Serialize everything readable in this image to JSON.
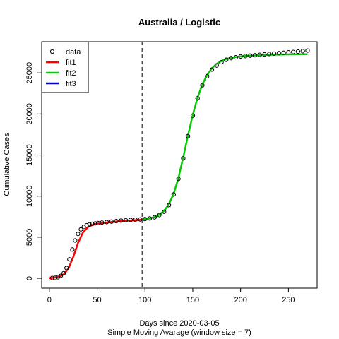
{
  "chart_data": {
    "type": "scatter",
    "title": "Australia / Logistic",
    "xlabel": "Days since 2020-03-05",
    "xlabel2": "Simple Moving Avarage (window size = 7)",
    "ylabel": "Cumulative Cases",
    "xlim": [
      -8,
      280
    ],
    "ylim": [
      -1200,
      28800
    ],
    "xticks": [
      0,
      50,
      100,
      150,
      200,
      250
    ],
    "yticks": [
      0,
      5000,
      10000,
      15000,
      20000,
      25000
    ],
    "vline": {
      "x": 97,
      "style": "dashed",
      "color": "#000000"
    },
    "legend": {
      "position": "top-left",
      "entries": [
        {
          "label": "data",
          "kind": "point",
          "color": "#000000"
        },
        {
          "label": "fit1",
          "kind": "line",
          "color": "#ff0000"
        },
        {
          "label": "fit2",
          "kind": "line",
          "color": "#00cc00"
        },
        {
          "label": "fit3",
          "kind": "line",
          "color": "#0000cc"
        }
      ]
    },
    "series": [
      {
        "name": "data",
        "kind": "points",
        "color": "#000000",
        "x": [
          3,
          6,
          9,
          12,
          15,
          18,
          21,
          24,
          27,
          30,
          33,
          36,
          39,
          42,
          45,
          48,
          51,
          55,
          60,
          65,
          70,
          75,
          80,
          85,
          90,
          95,
          100,
          105,
          110,
          115,
          120,
          125,
          130,
          135,
          140,
          145,
          150,
          155,
          160,
          165,
          170,
          175,
          180,
          185,
          190,
          195,
          200,
          205,
          210,
          215,
          220,
          225,
          230,
          235,
          240,
          245,
          250,
          255,
          260,
          265,
          270
        ],
        "y": [
          40,
          60,
          130,
          300,
          620,
          1250,
          2300,
          3500,
          4600,
          5400,
          5950,
          6250,
          6450,
          6550,
          6620,
          6680,
          6720,
          6780,
          6840,
          6900,
          6960,
          7020,
          7060,
          7100,
          7130,
          7160,
          7210,
          7280,
          7420,
          7700,
          8100,
          8900,
          10200,
          12100,
          14600,
          17300,
          19800,
          21900,
          23500,
          24600,
          25400,
          25900,
          26300,
          26600,
          26800,
          26900,
          27000,
          27050,
          27100,
          27150,
          27200,
          27250,
          27300,
          27350,
          27400,
          27450,
          27500,
          27550,
          27600,
          27650,
          27720
        ]
      },
      {
        "name": "fit1",
        "kind": "line",
        "color": "#ff0000",
        "x": [
          0,
          5,
          10,
          15,
          20,
          25,
          30,
          35,
          40,
          45,
          50,
          60,
          70,
          80,
          90,
          97
        ],
        "y": [
          30,
          70,
          180,
          480,
          1200,
          2600,
          4300,
          5550,
          6200,
          6500,
          6650,
          6790,
          6900,
          7000,
          7080,
          7130
        ]
      },
      {
        "name": "fit2",
        "kind": "line",
        "color": "#00cc00",
        "x": [
          97,
          105,
          110,
          115,
          120,
          125,
          130,
          135,
          140,
          145,
          150,
          155,
          160,
          165,
          170,
          175,
          180,
          185,
          190,
          200,
          210,
          220,
          230,
          240,
          250,
          260,
          270
        ],
        "y": [
          7180,
          7280,
          7450,
          7750,
          8200,
          9000,
          10300,
          12200,
          14700,
          17400,
          19900,
          22000,
          23600,
          24750,
          25550,
          26100,
          26450,
          26700,
          26850,
          27000,
          27100,
          27150,
          27200,
          27230,
          27250,
          27260,
          27270
        ]
      }
    ]
  }
}
